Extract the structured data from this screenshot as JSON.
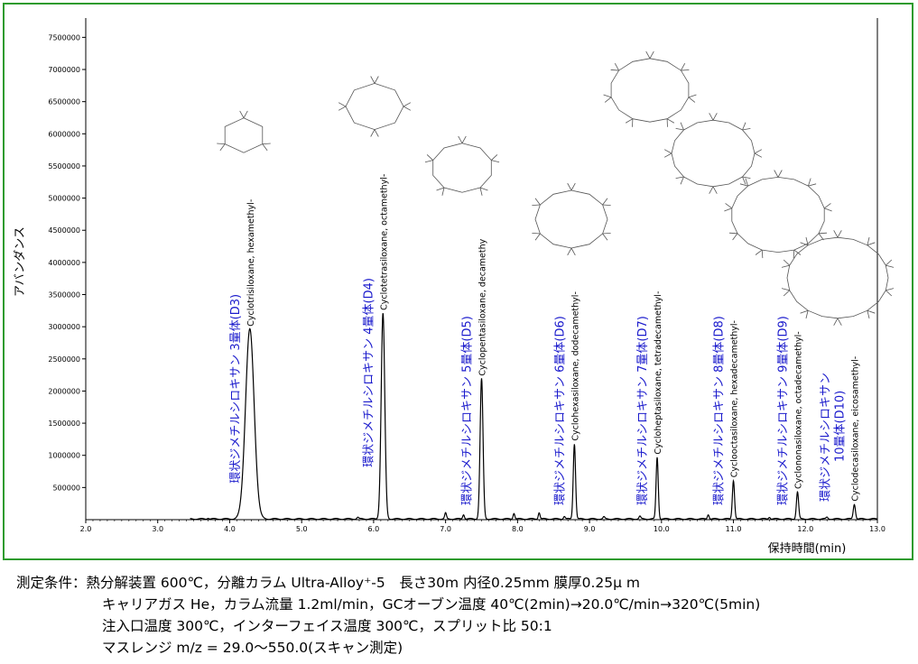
{
  "chart_data": {
    "type": "line",
    "ylabel": "アバンダンス",
    "xlabel": "保持時間(min)",
    "xlim": [
      2.0,
      13.0
    ],
    "ylim": [
      0,
      7800000
    ],
    "x_ticks": [
      "2.0",
      "3.0",
      "4.0",
      "5.0",
      "6.0",
      "7.0",
      "8.0",
      "9.0",
      "10.0",
      "11.0",
      "12.0",
      "13.0"
    ],
    "x_tick_values": [
      2,
      3,
      4,
      5,
      6,
      7,
      8,
      9,
      10,
      11,
      12,
      13
    ],
    "y_ticks": [
      "500000",
      "1000000",
      "1500000",
      "2000000",
      "2500000",
      "3000000",
      "3500000",
      "4000000",
      "4500000",
      "5000000",
      "5500000",
      "6000000",
      "6500000",
      "7000000",
      "7500000"
    ],
    "y_tick_values": [
      500000,
      1000000,
      1500000,
      2000000,
      2500000,
      3000000,
      3500000,
      4000000,
      4500000,
      5000000,
      5500000,
      6000000,
      6500000,
      7000000,
      7500000
    ],
    "grid": false,
    "peaks": [
      {
        "rt": 4.28,
        "height": 2950000,
        "width": 0.06,
        "jp_label": "環状ジメチルシロキサン 3量体(D3)",
        "en_label": "Cyclotrisiloxane, hexamethyl-"
      },
      {
        "rt": 6.13,
        "height": 3200000,
        "width": 0.025,
        "jp_label": "環状ジメチルシロキサン 4量体(D4)",
        "en_label": "Cyclotetrasiloxane, octamethyl-"
      },
      {
        "rt": 7.5,
        "height": 2180000,
        "width": 0.02,
        "jp_label": "環状ジメチルシロキサン 5量体(D5)",
        "en_label": "Cyclopentasiloxane, decamethy"
      },
      {
        "rt": 8.79,
        "height": 1170000,
        "width": 0.016,
        "jp_label": "環状ジメチルシロキサン 6量体(D6)",
        "en_label": "Cyclohexasiloxane, dodecamethyl-"
      },
      {
        "rt": 9.94,
        "height": 960000,
        "width": 0.015,
        "jp_label": "環状ジメチルシロキサン 7量体(D7)",
        "en_label": "Cycloheptasiloxane, tetradecamethyl-"
      },
      {
        "rt": 11.0,
        "height": 600000,
        "width": 0.015,
        "jp_label": "環状ジメチルシロキサン 8量体(D8)",
        "en_label": "Cyclooctasiloxane, hexadecamethyl-"
      },
      {
        "rt": 11.89,
        "height": 420000,
        "width": 0.015,
        "jp_label": "環状ジメチルシロキサン 9量体(D9)",
        "en_label": "Cyclononasiloxane, octadecamethyl-"
      },
      {
        "rt": 12.68,
        "height": 230000,
        "width": 0.015,
        "jp_label_lines": [
          "環状ジメチルシロキサン",
          "10量体(D10)"
        ],
        "en_label": "Cyclodecasiloxane, eicosamethyl-"
      }
    ],
    "minor_peaks": [
      {
        "rt": 3.7,
        "height": 15000
      },
      {
        "rt": 5.78,
        "height": 25000
      },
      {
        "rt": 7.0,
        "height": 90000
      },
      {
        "rt": 7.25,
        "height": 70000
      },
      {
        "rt": 7.95,
        "height": 90000
      },
      {
        "rt": 8.3,
        "height": 100000
      },
      {
        "rt": 8.65,
        "height": 40000
      },
      {
        "rt": 9.2,
        "height": 30000
      },
      {
        "rt": 9.7,
        "height": 40000
      },
      {
        "rt": 10.65,
        "height": 70000
      },
      {
        "rt": 11.5,
        "height": 30000
      },
      {
        "rt": 12.3,
        "height": 25000
      }
    ]
  },
  "conditions": {
    "line1": "測定条件：熱分解装置 600℃，分離カラム Ultra-Alloy⁺-5　長さ30m 内径0.25mm 膜厚0.25μ m",
    "line2": "キャリアガス He，カラム流量 1.2ml/min，GCオーブン温度 40℃(2min)→20.0℃/min→320℃(5min)",
    "line3": "注入口温度 300℃，インターフェイス温度 300℃，スプリット比 50:1",
    "line4": "マスレンジ m/z = 29.0～550.0(スキャン測定)"
  },
  "colors": {
    "frame": "#2e9b2e",
    "jp_label": "#1a1acc",
    "trace": "#000000"
  }
}
